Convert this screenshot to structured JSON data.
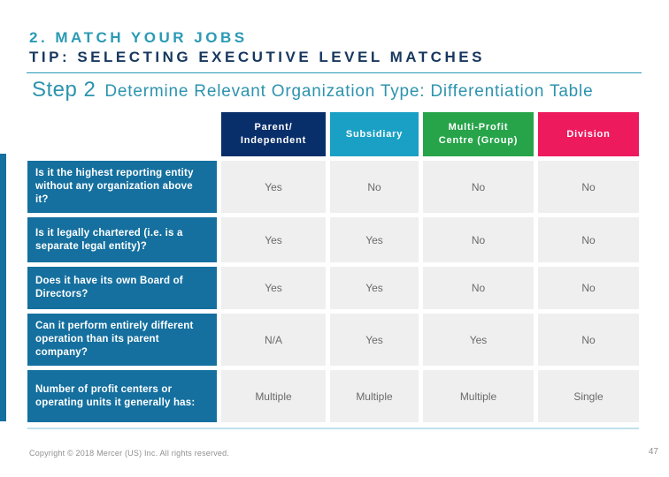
{
  "slide": {
    "title_line1": "2. MATCH YOUR JOBS",
    "title_line2": "TIP: SELECTING EXECUTIVE LEVEL MATCHES",
    "step_label": "Step 2",
    "step_text": "Determine Relevant Organization Type: Differentiation Table",
    "footer_copyright": "Copyright © 2018 Mercer (US) Inc. All rights reserved.",
    "page_number": "47"
  },
  "colors": {
    "title_teal": "#2A9AB5",
    "title_navy": "#17375E",
    "step_teal": "#2D93AE",
    "header_parent_navy": "#092F6B",
    "header_subsidiary_teal": "#1BA0C5",
    "header_multiprofit_green": "#27A44A",
    "header_division_pink": "#ED1A5E",
    "question_row_blue": "#15709F",
    "accent_bar_blue": "#15709F",
    "value_cell_bg": "#F0EFEF",
    "value_text_gray": "#6A6A6A"
  },
  "chart_data": {
    "type": "table",
    "title": "Step 2 Determine Relevant Organization Type: Differentiation Table",
    "columns": [
      "Parent/ Independent",
      "Subsidiary",
      "Multi-Profit Centre (Group)",
      "Division"
    ],
    "rows": [
      {
        "question": "Is it the highest reporting entity without any organization above it?",
        "values": [
          "Yes",
          "No",
          "No",
          "No"
        ]
      },
      {
        "question": "Is it legally chartered (i.e. is a separate legal entity)?",
        "values": [
          "Yes",
          "Yes",
          "No",
          "No"
        ]
      },
      {
        "question": "Does it have its own Board of Directors?",
        "values": [
          "Yes",
          "Yes",
          "No",
          "No"
        ]
      },
      {
        "question": "Can it perform entirely different operation than its parent company?",
        "values": [
          "N/A",
          "Yes",
          "Yes",
          "No"
        ]
      },
      {
        "question": "Number of profit centers or operating units it generally has:",
        "values": [
          "Multiple",
          "Multiple",
          "Multiple",
          "Single"
        ]
      }
    ]
  },
  "table": {
    "columns": [
      {
        "label": "Parent/\nIndependent"
      },
      {
        "label": "Subsidiary"
      },
      {
        "label": "Multi-Profit\nCentre (Group)"
      },
      {
        "label": "Division"
      }
    ],
    "rows": [
      {
        "question": "Is it the highest reporting entity without any organization above it?",
        "values": [
          "Yes",
          "No",
          "No",
          "No"
        ]
      },
      {
        "question": "Is it legally chartered (i.e. is a separate legal entity)?",
        "values": [
          "Yes",
          "Yes",
          "No",
          "No"
        ]
      },
      {
        "question": "Does it have its own Board of Directors?",
        "values": [
          "Yes",
          "Yes",
          "No",
          "No"
        ]
      },
      {
        "question": "Can it perform entirely different operation than its parent company?",
        "values": [
          "N/A",
          "Yes",
          "Yes",
          "No"
        ]
      },
      {
        "question": "Number of profit centers or operating units it generally has:",
        "values": [
          "Multiple",
          "Multiple",
          "Multiple",
          "Single"
        ]
      }
    ]
  }
}
